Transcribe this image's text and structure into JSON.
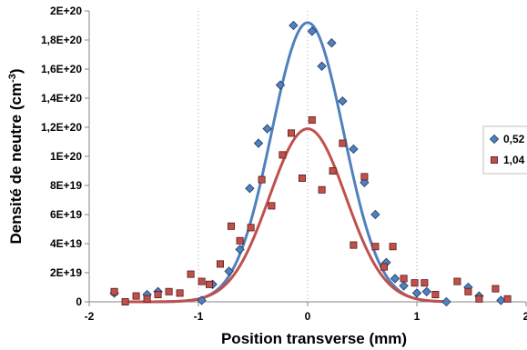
{
  "chart_data": {
    "type": "scatter",
    "xlabel": "Position transverse (mm)",
    "ylabel": "Densité de neutre (cm",
    "ylabel_sup": "-3",
    "ylabel_end": ")",
    "xlim": [
      -2,
      2
    ],
    "ylim": [
      0,
      2e+20
    ],
    "x_ticks": [
      {
        "value": -2,
        "label": "-2"
      },
      {
        "value": -1,
        "label": "-1"
      },
      {
        "value": 0,
        "label": "0"
      },
      {
        "value": 1,
        "label": "1"
      },
      {
        "value": 2,
        "label": "2"
      }
    ],
    "y_ticks": [
      {
        "value": 0,
        "label": "0"
      },
      {
        "value": 2e+19,
        "label": "2E+19"
      },
      {
        "value": 4e+19,
        "label": "4E+19"
      },
      {
        "value": 6e+19,
        "label": "6E+19"
      },
      {
        "value": 8e+19,
        "label": "8E+19"
      },
      {
        "value": 1e+20,
        "label": "1E+20"
      },
      {
        "value": 1.2e+20,
        "label": "1,2E+20"
      },
      {
        "value": 1.4e+20,
        "label": "1,4E+20"
      },
      {
        "value": 1.6e+20,
        "label": "1,6E+20"
      },
      {
        "value": 1.8e+20,
        "label": "1,8E+20"
      },
      {
        "value": 2e+20,
        "label": "2E+20"
      }
    ],
    "grid": {
      "vertical": true,
      "horizontal": false,
      "style": "dotted"
    },
    "legend_position": "right",
    "series": [
      {
        "name": "0,52",
        "marker": "diamond",
        "color": "#4F81BD",
        "marker_edge": "#1F3864",
        "fit_color": "#4F81BD",
        "fit": {
          "amplitude": 1.92e+20,
          "center": 0,
          "sigma": 0.33,
          "baseline": 0
        },
        "points": [
          [
            -1.77,
            6e+18
          ],
          [
            -1.47,
            5e+18
          ],
          [
            -1.37,
            7e+18
          ],
          [
            -0.97,
            1e+18
          ],
          [
            -0.87,
            1.2e+19
          ],
          [
            -0.72,
            2.1e+19
          ],
          [
            -0.62,
            3.6e+19
          ],
          [
            -0.53,
            7.8e+19
          ],
          [
            -0.45,
            1.09e+20
          ],
          [
            -0.37,
            1.19e+20
          ],
          [
            -0.25,
            1.49e+20
          ],
          [
            -0.13,
            1.9e+20
          ],
          [
            0.04,
            1.86e+20
          ],
          [
            0.13,
            1.62e+20
          ],
          [
            0.22,
            1.78e+20
          ],
          [
            0.32,
            1.38e+20
          ],
          [
            0.42,
            1.05e+20
          ],
          [
            0.52,
            8.2e+19
          ],
          [
            0.62,
            6e+19
          ],
          [
            0.72,
            2.7e+19
          ],
          [
            0.8,
            1.6e+19
          ],
          [
            0.88,
            1.1e+19
          ],
          [
            1.0,
            6e+18
          ],
          [
            1.09,
            7e+18
          ],
          [
            1.27,
            0
          ],
          [
            1.47,
            1e+19
          ],
          [
            1.57,
            4e+18
          ],
          [
            1.77,
            1e+18
          ]
        ]
      },
      {
        "name": "1,04",
        "marker": "square",
        "color": "#C0504D",
        "marker_edge": "#5A1A17",
        "fit_color": "#C0504D",
        "fit": {
          "amplitude": 1.19e+20,
          "center": 0,
          "sigma": 0.35,
          "baseline": 0
        },
        "points": [
          [
            -1.77,
            7e+18
          ],
          [
            -1.67,
            0
          ],
          [
            -1.57,
            4e+18
          ],
          [
            -1.47,
            2e+18
          ],
          [
            -1.37,
            5e+18
          ],
          [
            -1.27,
            7e+18
          ],
          [
            -1.17,
            6e+18
          ],
          [
            -1.07,
            1.9e+19
          ],
          [
            -0.97,
            1.4e+19
          ],
          [
            -0.9,
            1.2e+19
          ],
          [
            -0.8,
            2.6e+19
          ],
          [
            -0.7,
            5.2e+19
          ],
          [
            -0.62,
            4.2e+19
          ],
          [
            -0.52,
            5.1e+19
          ],
          [
            -0.42,
            8.4e+19
          ],
          [
            -0.33,
            6.6e+19
          ],
          [
            -0.23,
            1.01e+20
          ],
          [
            -0.15,
            1.16e+20
          ],
          [
            -0.05,
            8.5e+19
          ],
          [
            0.04,
            1.25e+20
          ],
          [
            0.13,
            7.7e+19
          ],
          [
            0.23,
            9e+19
          ],
          [
            0.32,
            1.09e+20
          ],
          [
            0.42,
            3.9e+19
          ],
          [
            0.52,
            8.6e+19
          ],
          [
            0.62,
            3.8e+19
          ],
          [
            0.7,
            2.4e+19
          ],
          [
            0.78,
            3.8e+19
          ],
          [
            0.88,
            1.6e+19
          ],
          [
            0.98,
            1.3e+19
          ],
          [
            1.07,
            1.3e+19
          ],
          [
            1.17,
            5e+18
          ],
          [
            1.37,
            1.4e+19
          ],
          [
            1.47,
            7e+18
          ],
          [
            1.57,
            2e+18
          ],
          [
            1.72,
            9e+18
          ],
          [
            1.83,
            2e+18
          ]
        ]
      }
    ]
  }
}
